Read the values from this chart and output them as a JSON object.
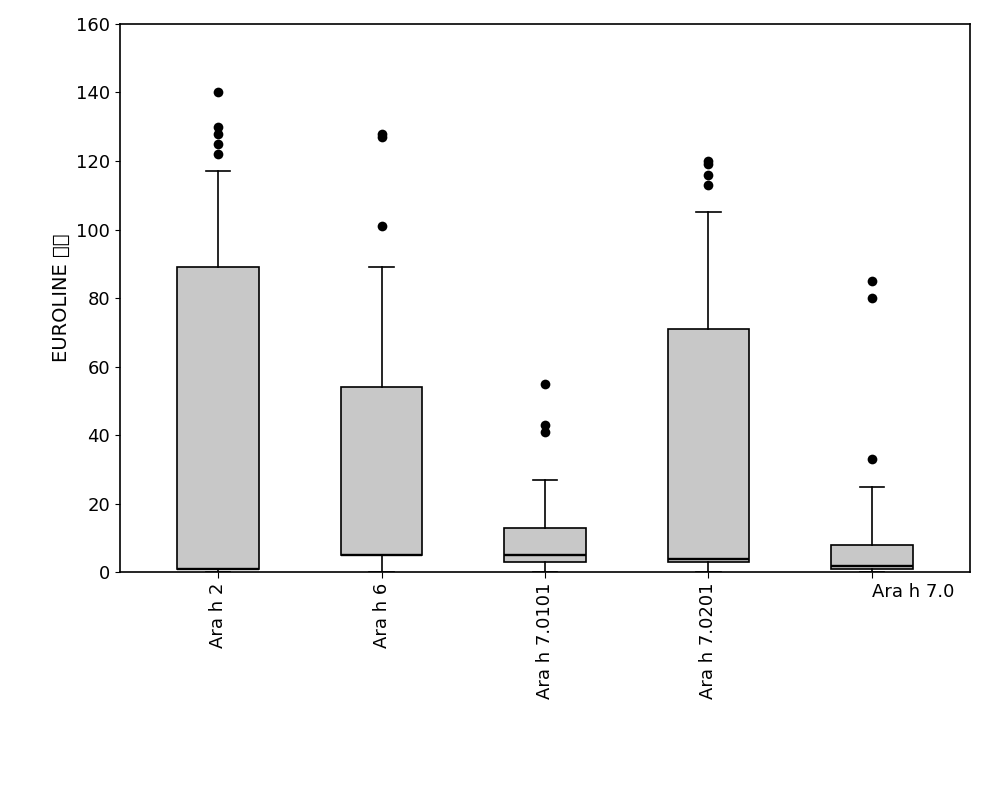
{
  "categories": [
    "Ara h 2",
    "Ara h 6",
    "Ara h 7.0101",
    "Ara h 7.0201",
    "Ara h 7.0"
  ],
  "ylabel": "EUROLINE 強度",
  "ylim": [
    0,
    160
  ],
  "yticks": [
    0,
    20,
    40,
    60,
    80,
    100,
    120,
    140,
    160
  ],
  "box_color": "#c8c8c8",
  "box_edge_color": "#000000",
  "whisker_color": "#000000",
  "flier_color": "#000000",
  "median_color": "#000000",
  "box_data": [
    {
      "label": "Ara h 2",
      "q1": 1,
      "median": 1,
      "q3": 89,
      "whislo": 0,
      "whishi": 117,
      "fliers": [
        122,
        125,
        128,
        130,
        140
      ]
    },
    {
      "label": "Ara h 6",
      "q1": 5,
      "median": 5,
      "q3": 54,
      "whislo": 0,
      "whishi": 89,
      "fliers": [
        101,
        127,
        128
      ]
    },
    {
      "label": "Ara h 7.0101",
      "q1": 3,
      "median": 5,
      "q3": 13,
      "whislo": 0,
      "whishi": 27,
      "fliers": [
        41,
        43,
        55
      ]
    },
    {
      "label": "Ara h 7.0201",
      "q1": 3,
      "median": 4,
      "q3": 71,
      "whislo": 0,
      "whishi": 105,
      "fliers": [
        113,
        116,
        119,
        120
      ]
    },
    {
      "label": "Ara h 7.0",
      "q1": 1,
      "median": 2,
      "q3": 8,
      "whislo": 0,
      "whishi": 25,
      "fliers": [
        33,
        80,
        85
      ]
    }
  ],
  "label_rotations": [
    90,
    90,
    90,
    90,
    0
  ],
  "label_has": [
    "center",
    "center",
    "center",
    "center",
    "left"
  ],
  "background_color": "#ffffff",
  "plot_bg_color": "#ffffff",
  "ylabel_fontsize": 14,
  "tick_fontsize": 13,
  "box_width": 0.5,
  "linewidth": 1.2
}
